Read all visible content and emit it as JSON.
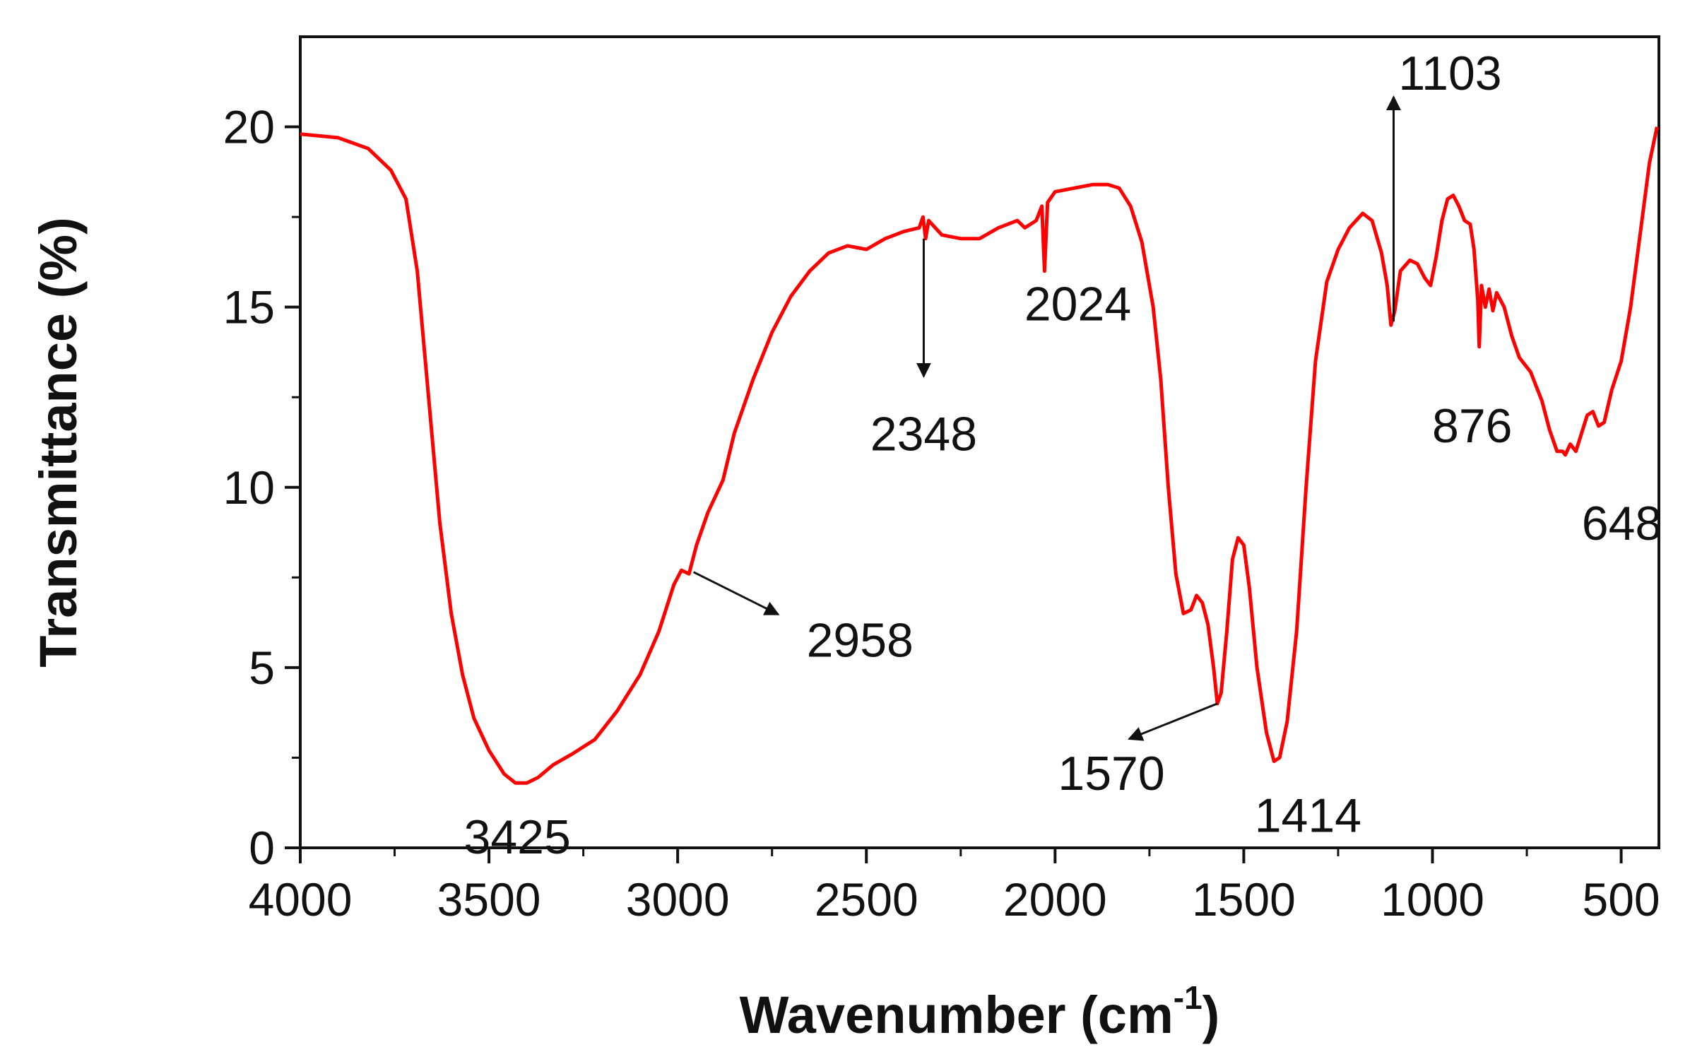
{
  "chart_data": {
    "type": "line",
    "title": "",
    "xlabel": "Wavenumber (cm",
    "xlabel_sup": "-1",
    "xlabel_close": ")",
    "ylabel": "Transmittance (%)",
    "xlim": [
      4000,
      400
    ],
    "ylim": [
      0,
      22.5
    ],
    "x_reversed": true,
    "x_ticks": [
      4000,
      3500,
      3000,
      2500,
      2000,
      1500,
      1000,
      500
    ],
    "x_tick_labels": [
      "4000",
      "3500",
      "3000",
      "2500",
      "2000",
      "1500",
      "1000",
      "500"
    ],
    "y_ticks": [
      0,
      5,
      10,
      15,
      20
    ],
    "y_tick_labels": [
      "0",
      "5",
      "10",
      "15",
      "20"
    ],
    "grid": false,
    "legend": "none",
    "line_color": "#ff0000",
    "series": [
      {
        "points": [
          [
            4000,
            19.8
          ],
          [
            3900,
            19.7
          ],
          [
            3820,
            19.4
          ],
          [
            3760,
            18.8
          ],
          [
            3720,
            18.0
          ],
          [
            3690,
            16.0
          ],
          [
            3660,
            12.5
          ],
          [
            3630,
            9.0
          ],
          [
            3600,
            6.5
          ],
          [
            3570,
            4.8
          ],
          [
            3540,
            3.6
          ],
          [
            3500,
            2.7
          ],
          [
            3460,
            2.05
          ],
          [
            3430,
            1.8
          ],
          [
            3400,
            1.8
          ],
          [
            3370,
            1.95
          ],
          [
            3330,
            2.3
          ],
          [
            3280,
            2.6
          ],
          [
            3220,
            3.0
          ],
          [
            3160,
            3.8
          ],
          [
            3100,
            4.8
          ],
          [
            3050,
            6.0
          ],
          [
            3010,
            7.3
          ],
          [
            2990,
            7.7
          ],
          [
            2970,
            7.6
          ],
          [
            2950,
            8.4
          ],
          [
            2920,
            9.3
          ],
          [
            2880,
            10.2
          ],
          [
            2850,
            11.5
          ],
          [
            2800,
            13.0
          ],
          [
            2750,
            14.3
          ],
          [
            2700,
            15.3
          ],
          [
            2650,
            16.0
          ],
          [
            2600,
            16.5
          ],
          [
            2550,
            16.7
          ],
          [
            2500,
            16.6
          ],
          [
            2450,
            16.9
          ],
          [
            2400,
            17.1
          ],
          [
            2360,
            17.2
          ],
          [
            2350,
            17.5
          ],
          [
            2343,
            16.9
          ],
          [
            2335,
            17.4
          ],
          [
            2300,
            17.0
          ],
          [
            2250,
            16.9
          ],
          [
            2200,
            16.9
          ],
          [
            2150,
            17.2
          ],
          [
            2100,
            17.4
          ],
          [
            2080,
            17.2
          ],
          [
            2050,
            17.4
          ],
          [
            2035,
            17.8
          ],
          [
            2028,
            16.0
          ],
          [
            2020,
            17.9
          ],
          [
            2000,
            18.2
          ],
          [
            1950,
            18.3
          ],
          [
            1900,
            18.4
          ],
          [
            1860,
            18.4
          ],
          [
            1830,
            18.3
          ],
          [
            1800,
            17.8
          ],
          [
            1770,
            16.8
          ],
          [
            1740,
            15.0
          ],
          [
            1720,
            13.0
          ],
          [
            1700,
            10.0
          ],
          [
            1680,
            7.6
          ],
          [
            1660,
            6.5
          ],
          [
            1640,
            6.6
          ],
          [
            1625,
            7.0
          ],
          [
            1610,
            6.8
          ],
          [
            1595,
            6.2
          ],
          [
            1580,
            5.0
          ],
          [
            1570,
            4.0
          ],
          [
            1560,
            4.3
          ],
          [
            1545,
            6.0
          ],
          [
            1530,
            8.0
          ],
          [
            1515,
            8.6
          ],
          [
            1500,
            8.4
          ],
          [
            1485,
            7.2
          ],
          [
            1465,
            5.0
          ],
          [
            1440,
            3.2
          ],
          [
            1420,
            2.4
          ],
          [
            1405,
            2.5
          ],
          [
            1385,
            3.5
          ],
          [
            1360,
            6.0
          ],
          [
            1335,
            10.0
          ],
          [
            1310,
            13.5
          ],
          [
            1280,
            15.7
          ],
          [
            1250,
            16.6
          ],
          [
            1220,
            17.2
          ],
          [
            1185,
            17.6
          ],
          [
            1160,
            17.4
          ],
          [
            1135,
            16.5
          ],
          [
            1120,
            15.6
          ],
          [
            1110,
            14.5
          ],
          [
            1100,
            14.9
          ],
          [
            1085,
            16.0
          ],
          [
            1060,
            16.3
          ],
          [
            1040,
            16.2
          ],
          [
            1020,
            15.8
          ],
          [
            1005,
            15.6
          ],
          [
            990,
            16.4
          ],
          [
            975,
            17.4
          ],
          [
            960,
            18.0
          ],
          [
            945,
            18.1
          ],
          [
            930,
            17.8
          ],
          [
            915,
            17.4
          ],
          [
            900,
            17.3
          ],
          [
            890,
            16.6
          ],
          [
            880,
            15.2
          ],
          [
            876,
            13.9
          ],
          [
            870,
            15.6
          ],
          [
            860,
            15.0
          ],
          [
            850,
            15.5
          ],
          [
            840,
            14.9
          ],
          [
            830,
            15.4
          ],
          [
            810,
            15.0
          ],
          [
            790,
            14.2
          ],
          [
            770,
            13.6
          ],
          [
            740,
            13.2
          ],
          [
            710,
            12.4
          ],
          [
            690,
            11.6
          ],
          [
            670,
            11.0
          ],
          [
            655,
            11.0
          ],
          [
            648,
            10.9
          ],
          [
            635,
            11.2
          ],
          [
            620,
            11.0
          ],
          [
            605,
            11.5
          ],
          [
            590,
            12.0
          ],
          [
            575,
            12.1
          ],
          [
            560,
            11.7
          ],
          [
            545,
            11.8
          ],
          [
            525,
            12.7
          ],
          [
            500,
            13.5
          ],
          [
            475,
            15.0
          ],
          [
            450,
            17.0
          ],
          [
            425,
            19.0
          ],
          [
            405,
            20.0
          ]
        ]
      }
    ],
    "annotations": [
      {
        "label": "3425",
        "x": 3425,
        "y": 1.8
      },
      {
        "label": "2958",
        "x": 2958,
        "y": 7.65
      },
      {
        "label": "2348",
        "x": 2348,
        "y": 16.9
      },
      {
        "label": "2024",
        "x": 2024,
        "y": 16.0
      },
      {
        "label": "1570",
        "x": 1570,
        "y": 4.0
      },
      {
        "label": "1414",
        "x": 1414,
        "y": 2.4
      },
      {
        "label": "1103",
        "x": 1103,
        "y": 14.6
      },
      {
        "label": "876",
        "x": 876,
        "y": 13.9
      },
      {
        "label": "648",
        "x": 648,
        "y": 10.9
      }
    ]
  }
}
